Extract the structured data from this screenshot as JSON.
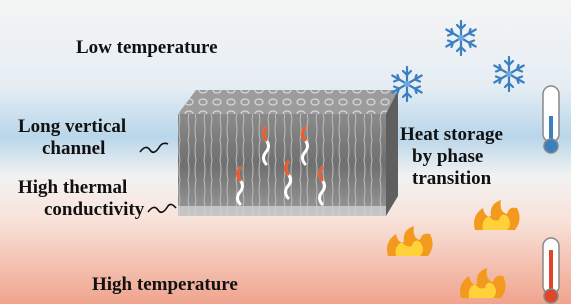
{
  "top_label": "Low temperature",
  "left_labels": [
    {
      "lines": [
        "Long vertical",
        "channel"
      ]
    },
    {
      "lines": [
        "High thermal",
        "conductivity"
      ]
    }
  ],
  "right_label": {
    "lines": [
      "Heat storage",
      "by phase",
      "transition"
    ]
  },
  "bottom_label": "High temperature"
}
